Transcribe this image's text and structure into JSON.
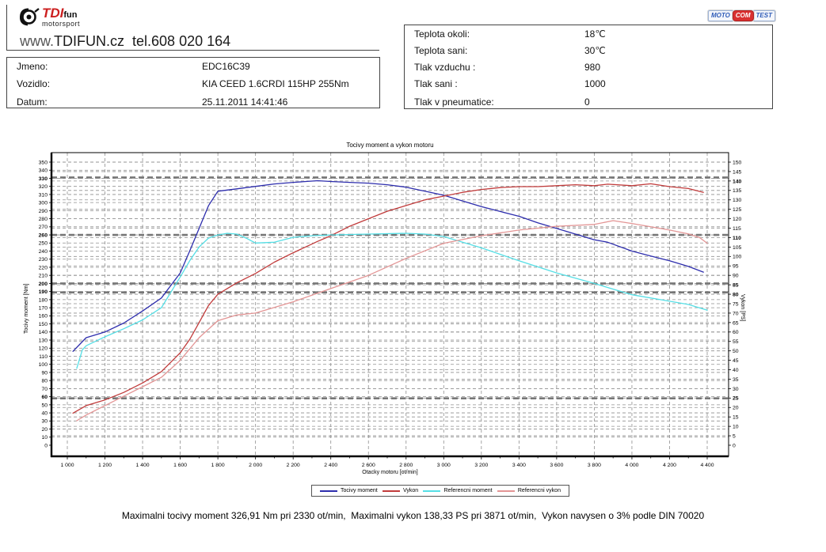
{
  "header": {
    "logo": {
      "tdi": "TDI",
      "fun": "fun",
      "sub": "motorsport"
    },
    "site_line": {
      "www": "www.",
      "domain": "TDIFUN.cz",
      "tel": "  tel.608 020 164"
    }
  },
  "motocom_badge": {
    "moto": "MOTO",
    "com": "COM",
    "test": "TEST"
  },
  "vehicle_box": {
    "rows": [
      {
        "label": "Jmeno:",
        "value": "EDC16C39"
      },
      {
        "label": "Vozidlo:",
        "value": "KIA CEED 1.6CRDI 115HP 255Nm"
      },
      {
        "label": "Datum:",
        "value": "25.11.2011 14:41:46"
      }
    ]
  },
  "conditions_box": {
    "rows": [
      {
        "label": "Teplota okoli:",
        "value": "18℃"
      },
      {
        "label": "Teplota sani:",
        "value": "30℃"
      },
      {
        "label": "Tlak vzduchu :",
        "value": "980"
      },
      {
        "label": "Tlak sani :",
        "value": "1000"
      },
      {
        "label": "Tlak v pneumatice:",
        "value": "0"
      }
    ]
  },
  "chart_data": {
    "type": "line",
    "title": "Tocivy moment a vykon motoru",
    "grid": "dashed",
    "legend_position": "bottom",
    "axes": {
      "x": {
        "label": "Otacky motoru [ot/min]",
        "min": 1000,
        "max": 4400,
        "step": 200,
        "minor_step": 100
      },
      "left": {
        "label": "Tocivy moment [Nm]",
        "min": 0,
        "max": 350,
        "step": 10,
        "bold_ticks": [
          330,
          260,
          200,
          190,
          60
        ]
      },
      "right": {
        "label": "Vykon [PS]",
        "min": 0,
        "max": 150,
        "step": 5,
        "bold_ticks": [
          140,
          110,
          85,
          80,
          25
        ]
      }
    },
    "bold_gridlines_left_axis_values": [
      331,
      260,
      200,
      189,
      58
    ],
    "series": [
      {
        "name": "Tocivy moment",
        "axis": "left",
        "color": "#2d2dad",
        "unit": "Nm",
        "x": [
          1030,
          1100,
          1200,
          1300,
          1400,
          1500,
          1600,
          1650,
          1700,
          1750,
          1800,
          1900,
          2000,
          2100,
          2200,
          2330,
          2400,
          2500,
          2600,
          2700,
          2800,
          2900,
          3000,
          3100,
          3200,
          3300,
          3400,
          3500,
          3600,
          3700,
          3800,
          3871,
          4000,
          4100,
          4200,
          4300,
          4380
        ],
        "y": [
          116,
          133,
          140,
          151,
          166,
          182,
          213,
          240,
          268,
          296,
          314,
          317,
          320,
          323,
          325,
          327,
          326,
          325,
          324,
          322,
          319,
          314,
          309,
          302,
          295,
          289,
          283,
          275,
          268,
          261,
          254,
          251,
          240,
          234,
          228,
          221,
          214
        ]
      },
      {
        "name": "Vykon",
        "axis": "right",
        "color": "#c13b3b",
        "unit": "PS",
        "x": [
          1030,
          1100,
          1200,
          1300,
          1400,
          1500,
          1600,
          1650,
          1700,
          1750,
          1800,
          1900,
          2000,
          2100,
          2200,
          2330,
          2400,
          2500,
          2600,
          2700,
          2800,
          2900,
          3000,
          3100,
          3200,
          3300,
          3400,
          3500,
          3600,
          3700,
          3800,
          3871,
          4000,
          4100,
          4200,
          4300,
          4380
        ],
        "y": [
          17,
          21,
          24,
          28,
          33,
          39,
          49,
          56,
          65,
          74,
          80,
          86,
          91,
          97,
          102,
          108,
          111,
          116,
          120,
          124,
          127,
          130,
          132,
          134,
          135.5,
          136.5,
          137,
          137,
          137.5,
          138,
          137.5,
          138.3,
          137.5,
          138.5,
          137,
          136,
          134
        ]
      },
      {
        "name": "Referencni moment",
        "axis": "left",
        "color": "#55dfe6",
        "unit": "Nm",
        "x": [
          1050,
          1080,
          1100,
          1200,
          1300,
          1400,
          1500,
          1600,
          1650,
          1700,
          1750,
          1800,
          1850,
          1900,
          1950,
          2000,
          2100,
          2200,
          2300,
          2400,
          2600,
          2800,
          2900,
          3000,
          3100,
          3200,
          3400,
          3600,
          3800,
          4000,
          4200,
          4300,
          4400
        ],
        "y": [
          95,
          118,
          123,
          134,
          144,
          155,
          170,
          208,
          228,
          245,
          256,
          260,
          262,
          261,
          256,
          250,
          251,
          257,
          259,
          260,
          261,
          262,
          261,
          258,
          251,
          244,
          228,
          213,
          200,
          186,
          178,
          174,
          167
        ]
      },
      {
        "name": "Referencni vykon",
        "axis": "right",
        "color": "#e39595",
        "unit": "PS",
        "x": [
          1050,
          1100,
          1200,
          1300,
          1400,
          1500,
          1600,
          1700,
          1800,
          1900,
          2000,
          2100,
          2200,
          2400,
          2600,
          2800,
          3000,
          3200,
          3400,
          3600,
          3800,
          3900,
          4000,
          4200,
          4300,
          4360,
          4400
        ],
        "y": [
          13,
          16,
          21,
          26,
          31,
          36,
          45,
          57,
          66,
          69,
          70,
          73,
          76,
          83,
          90,
          99,
          107,
          111,
          114,
          116,
          117,
          119,
          117.5,
          114,
          112,
          110,
          107
        ]
      }
    ],
    "annotations": {
      "max_torque": "326,91 Nm pri 2330 ot/min",
      "max_power": "138,33 PS pri 3871 ot/min"
    }
  },
  "footer": {
    "summary": "Maximalni tocivy moment 326,91 Nm pri 2330 ot/min,  Maximalni vykon 138,33 PS pri 3871 ot/min,  Vykon navysen o 3% podle DIN 70020"
  }
}
